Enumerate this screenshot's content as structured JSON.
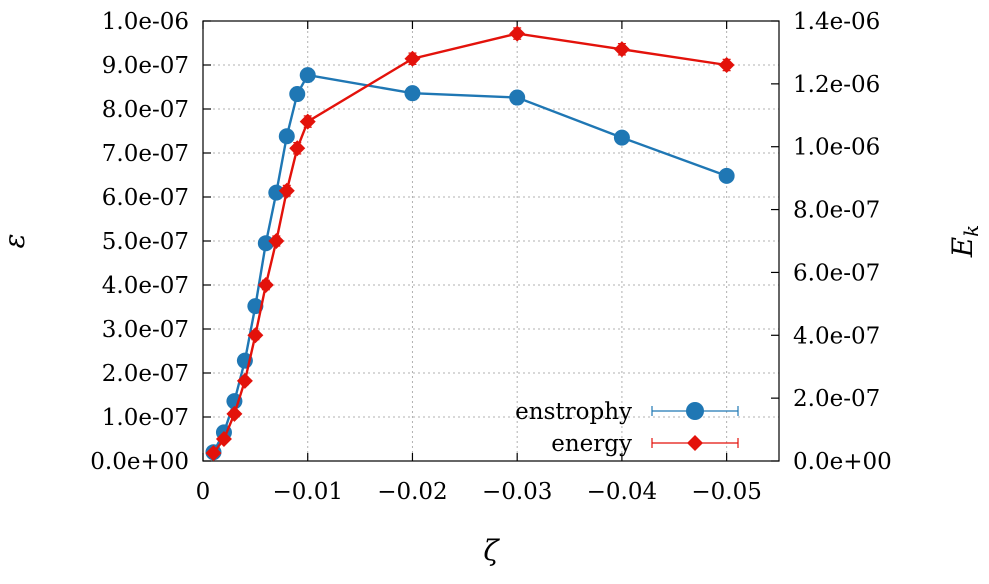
{
  "chart_data": {
    "type": "line",
    "xlabel": "ζ",
    "ylabel_left": "ε",
    "ylabel_right_base": "E",
    "ylabel_right_sub": "k",
    "xlim": [
      0,
      -0.055
    ],
    "ylim_left": [
      0,
      1e-06
    ],
    "ylim_right": [
      0,
      1.4e-06
    ],
    "x_ticks": [
      0,
      -0.01,
      -0.02,
      -0.03,
      -0.04,
      -0.05
    ],
    "x_tick_labels": [
      "0",
      "−0.01",
      "−0.02",
      "−0.03",
      "−0.04",
      "−0.05"
    ],
    "y_left_ticks": [
      0,
      1e-07,
      2e-07,
      3e-07,
      4e-07,
      5e-07,
      6e-07,
      7e-07,
      8e-07,
      9e-07,
      1e-06
    ],
    "y_left_tick_labels": [
      "0.0e+00",
      "1.0e-07",
      "2.0e-07",
      "3.0e-07",
      "4.0e-07",
      "5.0e-07",
      "6.0e-07",
      "7.0e-07",
      "8.0e-07",
      "9.0e-07",
      "1.0e-06"
    ],
    "y_right_ticks": [
      0,
      2e-07,
      4e-07,
      6e-07,
      8e-07,
      1e-06,
      1.2e-06,
      1.4e-06
    ],
    "y_right_tick_labels": [
      "0.0e+00",
      "2.0e-07",
      "4.0e-07",
      "6.0e-07",
      "8.0e-07",
      "1.0e-06",
      "1.2e-06",
      "1.4e-06"
    ],
    "grid": true,
    "legend_position": "bottom-right",
    "series": [
      {
        "name": "enstrophy",
        "axis": "left",
        "color": "#1f77b4",
        "marker": "circle",
        "x": [
          -0.001,
          -0.002,
          -0.003,
          -0.004,
          -0.005,
          -0.006,
          -0.007,
          -0.008,
          -0.009,
          -0.01,
          -0.02,
          -0.03,
          -0.04,
          -0.05
        ],
        "y": [
          2e-08,
          6.5e-08,
          1.36e-07,
          2.28e-07,
          3.52e-07,
          4.95e-07,
          6.1e-07,
          7.38e-07,
          8.34e-07,
          8.77e-07,
          8.36e-07,
          8.26e-07,
          7.35e-07,
          6.48e-07
        ],
        "err": [
          4e-09,
          7e-09,
          8e-09,
          1e-08,
          1.1e-08,
          1.2e-08,
          1.3e-08,
          1.4e-08,
          1.5e-08,
          1.5e-08,
          1.5e-08,
          1.5e-08,
          1.4e-08,
          1.3e-08
        ]
      },
      {
        "name": "energy",
        "axis": "right",
        "color": "#e3120b",
        "marker": "diamond",
        "x": [
          -0.001,
          -0.002,
          -0.003,
          -0.004,
          -0.005,
          -0.006,
          -0.007,
          -0.008,
          -0.009,
          -0.01,
          -0.02,
          -0.03,
          -0.04,
          -0.05
        ],
        "y": [
          2.5e-08,
          7e-08,
          1.5e-07,
          2.55e-07,
          4e-07,
          5.6e-07,
          7e-07,
          8.6e-07,
          9.95e-07,
          1.08e-06,
          1.28e-06,
          1.36e-06,
          1.31e-06,
          1.26e-06
        ],
        "err": [
          5e-09,
          8e-09,
          1e-08,
          1.2e-08,
          1.4e-08,
          1.5e-08,
          1.6e-08,
          1.7e-08,
          1.8e-08,
          1.8e-08,
          1.8e-08,
          1.8e-08,
          1.8e-08,
          1.8e-08
        ]
      }
    ]
  }
}
